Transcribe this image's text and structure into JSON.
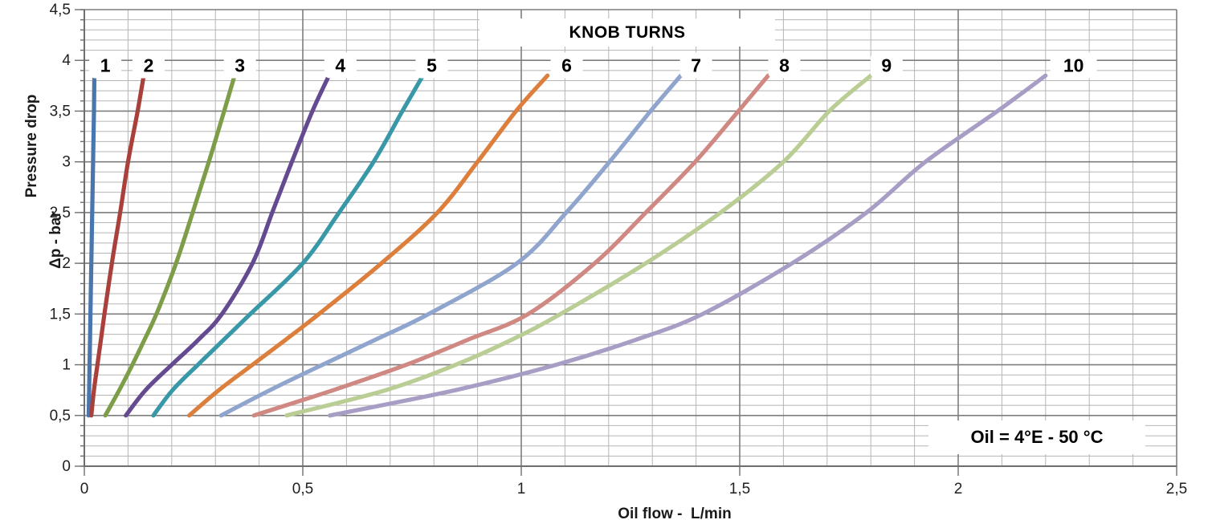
{
  "chart_data": {
    "type": "line",
    "title": "KNOB TURNS",
    "annotation": "Oil = 4°E - 50 °C",
    "xlabel": "Oil flow -  L/min",
    "ylabel_line1": "Pressure drop",
    "ylabel_line2": "Δp - bar",
    "xlim": [
      0,
      2.5
    ],
    "ylim": [
      0,
      4.5
    ],
    "x_major_step": 0.5,
    "x_minor_step": 0.1,
    "y_major_step": 0.5,
    "y_minor_step": 0.1,
    "grid": true,
    "legend_position": "labels-above-curve-tops",
    "x_tick_labels": [
      "0",
      "0,5",
      "1",
      "1,5",
      "2",
      "2,5"
    ],
    "y_tick_labels": [
      "0",
      "0,5",
      "1",
      "1,5",
      "2",
      "2,5",
      "3",
      "3,5",
      "4",
      "4,5"
    ],
    "colors": {
      "minor_grid": "#b5b5b5",
      "major_grid": "#7d7d7d",
      "axis": "#6e6e6e",
      "tick_text": "#1f1f1f",
      "label_text": "#000000",
      "chip_background": "#ffffff",
      "plot_background": "#ffffff"
    },
    "series": [
      {
        "name": "1",
        "color": "#4A76AE",
        "label_x": 0.048,
        "label_y": 3.95,
        "points": [
          [
            0.01,
            0.5
          ],
          [
            0.011,
            0.75
          ],
          [
            0.012,
            1.0
          ],
          [
            0.013,
            1.25
          ],
          [
            0.014,
            1.5
          ],
          [
            0.016,
            2.0
          ],
          [
            0.018,
            2.5
          ],
          [
            0.02,
            3.0
          ],
          [
            0.022,
            3.5
          ],
          [
            0.023,
            3.85
          ]
        ]
      },
      {
        "name": "2",
        "color": "#AA403C",
        "label_x": 0.147,
        "label_y": 3.95,
        "points": [
          [
            0.016,
            0.5
          ],
          [
            0.022,
            0.75
          ],
          [
            0.03,
            1.0
          ],
          [
            0.038,
            1.25
          ],
          [
            0.046,
            1.5
          ],
          [
            0.063,
            2.0
          ],
          [
            0.082,
            2.5
          ],
          [
            0.1,
            3.0
          ],
          [
            0.122,
            3.5
          ],
          [
            0.136,
            3.85
          ]
        ]
      },
      {
        "name": "3",
        "color": "#7E9D49",
        "label_x": 0.356,
        "label_y": 3.95,
        "points": [
          [
            0.048,
            0.5
          ],
          [
            0.08,
            0.75
          ],
          [
            0.11,
            1.0
          ],
          [
            0.138,
            1.25
          ],
          [
            0.165,
            1.5
          ],
          [
            0.21,
            2.0
          ],
          [
            0.248,
            2.5
          ],
          [
            0.285,
            3.0
          ],
          [
            0.32,
            3.5
          ],
          [
            0.344,
            3.85
          ]
        ]
      },
      {
        "name": "4",
        "color": "#644A90",
        "label_x": 0.586,
        "label_y": 3.95,
        "points": [
          [
            0.095,
            0.5
          ],
          [
            0.14,
            0.75
          ],
          [
            0.2,
            1.0
          ],
          [
            0.262,
            1.25
          ],
          [
            0.315,
            1.5
          ],
          [
            0.385,
            2.0
          ],
          [
            0.43,
            2.5
          ],
          [
            0.475,
            3.0
          ],
          [
            0.522,
            3.5
          ],
          [
            0.56,
            3.85
          ]
        ]
      },
      {
        "name": "5",
        "color": "#3898A8",
        "label_x": 0.795,
        "label_y": 3.95,
        "points": [
          [
            0.158,
            0.5
          ],
          [
            0.202,
            0.75
          ],
          [
            0.26,
            1.0
          ],
          [
            0.32,
            1.25
          ],
          [
            0.38,
            1.5
          ],
          [
            0.5,
            2.0
          ],
          [
            0.583,
            2.5
          ],
          [
            0.662,
            3.0
          ],
          [
            0.728,
            3.5
          ],
          [
            0.775,
            3.85
          ]
        ]
      },
      {
        "name": "6",
        "color": "#DC7F3C",
        "label_x": 1.104,
        "label_y": 3.95,
        "points": [
          [
            0.24,
            0.5
          ],
          [
            0.308,
            0.75
          ],
          [
            0.385,
            1.0
          ],
          [
            0.462,
            1.25
          ],
          [
            0.537,
            1.5
          ],
          [
            0.68,
            2.0
          ],
          [
            0.808,
            2.5
          ],
          [
            0.9,
            3.0
          ],
          [
            0.988,
            3.5
          ],
          [
            1.06,
            3.85
          ]
        ]
      },
      {
        "name": "7",
        "color": "#8FA5CE",
        "label_x": 1.4,
        "label_y": 3.95,
        "points": [
          [
            0.313,
            0.5
          ],
          [
            0.425,
            0.75
          ],
          [
            0.545,
            1.0
          ],
          [
            0.668,
            1.25
          ],
          [
            0.788,
            1.5
          ],
          [
            0.99,
            2.0
          ],
          [
            1.103,
            2.5
          ],
          [
            1.202,
            3.0
          ],
          [
            1.296,
            3.5
          ],
          [
            1.365,
            3.85
          ]
        ]
      },
      {
        "name": "8",
        "color": "#D08883",
        "label_x": 1.602,
        "label_y": 3.95,
        "points": [
          [
            0.388,
            0.5
          ],
          [
            0.57,
            0.75
          ],
          [
            0.737,
            1.0
          ],
          [
            0.88,
            1.25
          ],
          [
            1.016,
            1.5
          ],
          [
            1.168,
            2.0
          ],
          [
            1.285,
            2.5
          ],
          [
            1.398,
            3.0
          ],
          [
            1.497,
            3.5
          ],
          [
            1.565,
            3.85
          ]
        ]
      },
      {
        "name": "9",
        "color": "#B9CD94",
        "label_x": 1.836,
        "label_y": 3.95,
        "points": [
          [
            0.463,
            0.5
          ],
          [
            0.69,
            0.75
          ],
          [
            0.85,
            1.0
          ],
          [
            0.98,
            1.25
          ],
          [
            1.09,
            1.5
          ],
          [
            1.285,
            2.0
          ],
          [
            1.456,
            2.5
          ],
          [
            1.6,
            3.0
          ],
          [
            1.705,
            3.5
          ],
          [
            1.8,
            3.85
          ]
        ]
      },
      {
        "name": "10",
        "color": "#A89EC5",
        "label_x": 2.264,
        "label_y": 3.95,
        "points": [
          [
            0.562,
            0.5
          ],
          [
            0.85,
            0.75
          ],
          [
            1.08,
            1.0
          ],
          [
            1.265,
            1.25
          ],
          [
            1.415,
            1.5
          ],
          [
            1.62,
            2.0
          ],
          [
            1.79,
            2.5
          ],
          [
            1.925,
            3.0
          ],
          [
            2.09,
            3.5
          ],
          [
            2.2,
            3.85
          ]
        ]
      }
    ]
  }
}
